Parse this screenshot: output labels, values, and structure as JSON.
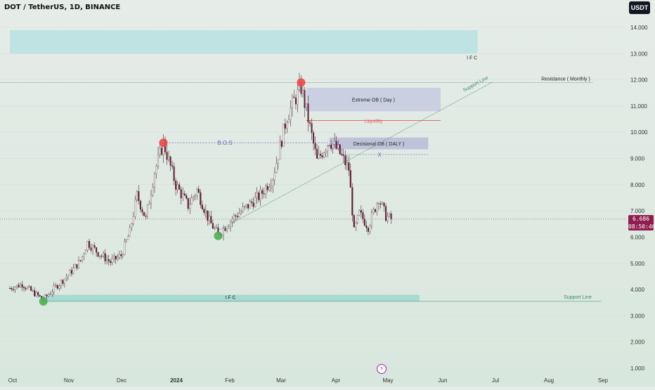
{
  "header": {
    "title": "DOT / TetherUS, 1D, BINANCE",
    "currency": "USDT"
  },
  "current_price": {
    "value": "6.686",
    "countdown": "08:50:46"
  },
  "chart_data": {
    "type": "candlestick",
    "price_axis": [
      "14.000",
      "13.000",
      "12.000",
      "11.000",
      "10.000",
      "9.000",
      "8.000",
      "7.000",
      "6.000",
      "5.000",
      "4.000",
      "3.000",
      "2.000",
      "1.000"
    ],
    "time_axis": [
      "Oct",
      "Nov",
      "Dec",
      "2024",
      "Feb",
      "Mar",
      "Apr",
      "May",
      "Jun",
      "Jul",
      "Aug",
      "Sep"
    ],
    "ylim": [
      1,
      14
    ],
    "current_price": 6.686,
    "price_path": [
      [
        "2023-10-01",
        4.05
      ],
      [
        "2023-10-08",
        4.2
      ],
      [
        "2023-10-15",
        3.85
      ],
      [
        "2023-10-20",
        3.62
      ],
      [
        "2023-10-27",
        4.1
      ],
      [
        "2023-11-03",
        4.55
      ],
      [
        "2023-11-10",
        5.1
      ],
      [
        "2023-11-14",
        5.8
      ],
      [
        "2023-11-20",
        5.4
      ],
      [
        "2023-11-27",
        5.05
      ],
      [
        "2023-12-03",
        5.3
      ],
      [
        "2023-12-08",
        6.2
      ],
      [
        "2023-12-12",
        7.6
      ],
      [
        "2023-12-17",
        6.7
      ],
      [
        "2023-12-22",
        8.5
      ],
      [
        "2023-12-27",
        9.6
      ],
      [
        "2024-01-03",
        8.0
      ],
      [
        "2024-01-10",
        7.2
      ],
      [
        "2024-01-15",
        7.8
      ],
      [
        "2024-01-22",
        6.6
      ],
      [
        "2024-01-27",
        6.1
      ],
      [
        "2024-02-04",
        6.7
      ],
      [
        "2024-02-13",
        7.2
      ],
      [
        "2024-02-20",
        7.6
      ],
      [
        "2024-02-27",
        8.3
      ],
      [
        "2024-03-06",
        10.6
      ],
      [
        "2024-03-10",
        11.2
      ],
      [
        "2024-03-14",
        11.7
      ],
      [
        "2024-03-18",
        10.5
      ],
      [
        "2024-03-23",
        8.9
      ],
      [
        "2024-03-30",
        9.7
      ],
      [
        "2024-04-04",
        9.3
      ],
      [
        "2024-04-10",
        8.6
      ],
      [
        "2024-04-13",
        6.2
      ],
      [
        "2024-04-16",
        6.9
      ],
      [
        "2024-04-21",
        6.4
      ],
      [
        "2024-04-27",
        7.5
      ],
      [
        "2024-05-01",
        6.8
      ],
      [
        "2024-05-04",
        6.686
      ]
    ],
    "annotations": {
      "zones": [
        {
          "label": "I F C",
          "date_from": "2023-10-01",
          "date_to": "2024-06-22",
          "price_low": 13.0,
          "price_high": 13.9,
          "color": "#b8e2e0"
        },
        {
          "label": "Extreme OB ( Day )",
          "date_from": "2024-03-17",
          "date_to": "2024-06-01",
          "price_low": 10.8,
          "price_high": 11.7,
          "color": "#c6cbe0"
        },
        {
          "label": "Decisional OB ( DALY )",
          "date_from": "2024-03-30",
          "date_to": "2024-05-25",
          "price_low": 9.35,
          "price_high": 9.8,
          "color": "#b9bcd7"
        },
        {
          "label": "I F C",
          "date_from": "2023-10-20",
          "date_to": "2024-05-20",
          "price_low": 3.55,
          "price_high": 3.8,
          "color": "#9fd6cf"
        }
      ],
      "lines": [
        {
          "label": "Resistance ( Monthly )",
          "price": 11.9,
          "color": "#7a7a9a"
        },
        {
          "label": "B.O.S",
          "price": 9.6,
          "date_from": "2023-12-27",
          "date_to": "2024-03-30",
          "color": "#6f63b5"
        },
        {
          "label": "Liquidity",
          "price": 10.45,
          "date_from": "2024-03-17",
          "date_to": "2024-06-01",
          "color": "#e65a5a"
        },
        {
          "label": "X",
          "price": 9.15,
          "date_from": "2024-04-05",
          "date_to": "2024-05-25",
          "color": "#6f63b5"
        },
        {
          "label": "Support Line",
          "price": 3.55,
          "date_from": "2023-10-20",
          "date_to": "2024-08-31",
          "color": "#3e8a6e"
        },
        {
          "label": "Support Line",
          "from": [
            "2024-01-27",
            6.25
          ],
          "to": [
            "2024-06-30",
            11.9
          ],
          "color": "#3e8a6e"
        }
      ],
      "markers": [
        {
          "date": "2023-12-27",
          "price": 9.6,
          "color": "#f04848"
        },
        {
          "date": "2024-03-14",
          "price": 11.9,
          "color": "#f04848"
        },
        {
          "date": "2024-01-27",
          "price": 6.05,
          "color": "#4caf50"
        },
        {
          "date": "2023-10-20",
          "price": 3.55,
          "color": "#4caf50"
        }
      ]
    }
  }
}
